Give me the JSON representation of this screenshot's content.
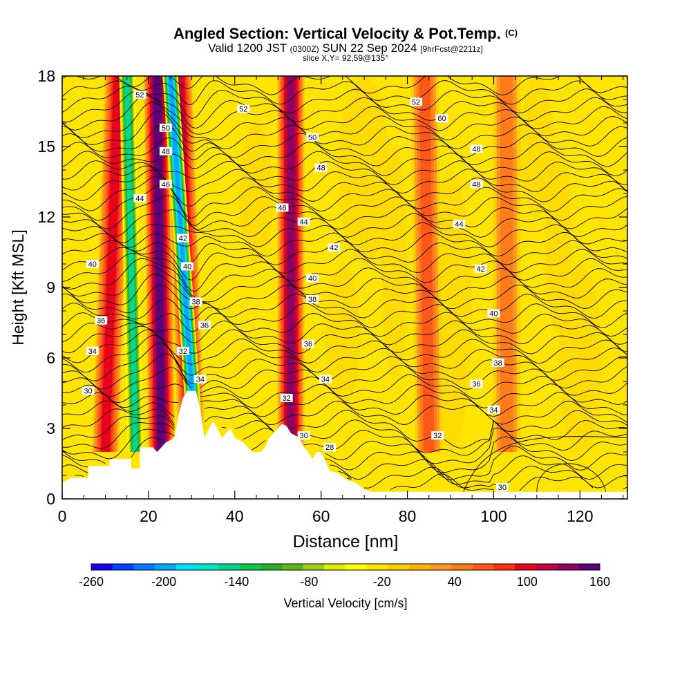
{
  "header": {
    "title": "Angled Section: Vertical Velocity & Pot.Temp.",
    "title_mark": "(C)",
    "valid_prefix": "Valid 1200 JST",
    "valid_utc": "(0300Z)",
    "valid_date": "SUN 22 Sep 2024",
    "forecast": "[9hrFcst@2211z]",
    "slice": "slice X,Y= 92,59@135°"
  },
  "chart_data": {
    "type": "heatmap",
    "xlabel": "Distance [nm]",
    "ylabel": "Height [Kft MSL]",
    "xlim": [
      0,
      131
    ],
    "ylim": [
      0,
      18
    ],
    "x_ticks": [
      0,
      20,
      40,
      60,
      80,
      100,
      120
    ],
    "y_ticks": [
      0,
      3,
      6,
      9,
      12,
      15,
      18
    ],
    "colorbar": {
      "label": "Vertical Velocity [cm/s]",
      "range": [
        -260,
        160
      ],
      "step": 20,
      "tick_labels": [
        -260,
        -200,
        -140,
        -80,
        -20,
        40,
        100,
        160
      ],
      "colors": [
        "#1400f0",
        "#0040ff",
        "#0078ff",
        "#00a8ff",
        "#00e0ff",
        "#00e8c8",
        "#00d890",
        "#10c850",
        "#28b028",
        "#60b818",
        "#a0d010",
        "#e0f000",
        "#ffff00",
        "#ffe400",
        "#ffd000",
        "#ffb400",
        "#ff9820",
        "#ff7c18",
        "#ff5818",
        "#ff3010",
        "#e8001c",
        "#c00040",
        "#900060",
        "#600078"
      ]
    },
    "background_value_cm_s": -20,
    "updraft_bands": [
      {
        "x_top": 13,
        "x_bottom": 10,
        "peak_cm_s": 100
      },
      {
        "x_top": 22,
        "x_bottom": 23,
        "peak_cm_s": 160
      },
      {
        "x_top": 27,
        "x_bottom": 30,
        "peak_cm_s": 120
      },
      {
        "x_top": 53,
        "x_bottom": 53,
        "peak_cm_s": 140
      },
      {
        "x_top": 84,
        "x_bottom": 85,
        "peak_cm_s": 60
      },
      {
        "x_top": 103,
        "x_bottom": 103,
        "peak_cm_s": 40
      }
    ],
    "downdraft_bands": [
      {
        "x_top": 15,
        "x_bottom": 17,
        "min_cm_s": -140
      },
      {
        "x_top": 25,
        "x_bottom": 31,
        "min_cm_s": -200
      }
    ],
    "terrain_kft": [
      [
        0,
        0.7
      ],
      [
        2,
        0.9
      ],
      [
        6,
        0.9
      ],
      [
        6,
        1.4
      ],
      [
        11,
        1.4
      ],
      [
        11,
        1.7
      ],
      [
        16,
        1.7
      ],
      [
        16,
        1.3
      ],
      [
        18,
        1.3
      ],
      [
        18,
        2.2
      ],
      [
        21,
        2.2
      ],
      [
        22,
        2.0
      ],
      [
        24,
        2.4
      ],
      [
        26,
        2.6
      ],
      [
        27,
        3.6
      ],
      [
        28,
        4.3
      ],
      [
        29,
        4.6
      ],
      [
        31,
        4.6
      ],
      [
        32,
        3.8
      ],
      [
        33,
        2.6
      ],
      [
        34,
        3.0
      ],
      [
        35,
        3.3
      ],
      [
        36,
        3.0
      ],
      [
        37,
        2.6
      ],
      [
        38,
        2.8
      ],
      [
        39,
        3.0
      ],
      [
        40,
        2.6
      ],
      [
        42,
        2.4
      ],
      [
        43,
        2.2
      ],
      [
        44,
        2.0
      ],
      [
        46,
        2.0
      ],
      [
        47,
        2.2
      ],
      [
        48,
        2.6
      ],
      [
        49,
        2.8
      ],
      [
        50,
        3.0
      ],
      [
        51,
        3.2
      ],
      [
        52,
        3.1
      ],
      [
        53,
        2.8
      ],
      [
        55,
        2.6
      ],
      [
        56,
        2.2
      ],
      [
        57,
        2.0
      ],
      [
        58,
        1.7
      ],
      [
        59,
        2.0
      ],
      [
        60,
        2.0
      ],
      [
        61,
        1.6
      ],
      [
        62,
        1.2
      ],
      [
        64,
        1.1
      ],
      [
        66,
        0.8
      ],
      [
        68,
        0.7
      ],
      [
        70,
        0.4
      ],
      [
        72,
        0.3
      ],
      [
        131,
        0.3
      ]
    ],
    "theta_contour_labels": [
      {
        "x": 18,
        "y": 17.2,
        "text": "52"
      },
      {
        "x": 42,
        "y": 16.6,
        "text": "52"
      },
      {
        "x": 82,
        "y": 16.9,
        "text": "52"
      },
      {
        "x": 88,
        "y": 16.2,
        "text": "60"
      },
      {
        "x": 24,
        "y": 15.8,
        "text": "50"
      },
      {
        "x": 58,
        "y": 15.4,
        "text": "50"
      },
      {
        "x": 24,
        "y": 14.8,
        "text": "48"
      },
      {
        "x": 96,
        "y": 14.9,
        "text": "48"
      },
      {
        "x": 60,
        "y": 14.1,
        "text": "48"
      },
      {
        "x": 24,
        "y": 13.4,
        "text": "46"
      },
      {
        "x": 96,
        "y": 13.4,
        "text": "48"
      },
      {
        "x": 18,
        "y": 12.8,
        "text": "44"
      },
      {
        "x": 51,
        "y": 12.4,
        "text": "46"
      },
      {
        "x": 56,
        "y": 11.8,
        "text": "44"
      },
      {
        "x": 92,
        "y": 11.7,
        "text": "44"
      },
      {
        "x": 28,
        "y": 11.1,
        "text": "42"
      },
      {
        "x": 63,
        "y": 10.7,
        "text": "42"
      },
      {
        "x": 7,
        "y": 10.0,
        "text": "40"
      },
      {
        "x": 29,
        "y": 9.9,
        "text": "40"
      },
      {
        "x": 97,
        "y": 9.8,
        "text": "42"
      },
      {
        "x": 58,
        "y": 9.4,
        "text": "40"
      },
      {
        "x": 58,
        "y": 8.5,
        "text": "38"
      },
      {
        "x": 31,
        "y": 8.4,
        "text": "38"
      },
      {
        "x": 100,
        "y": 7.9,
        "text": "40"
      },
      {
        "x": 9,
        "y": 7.6,
        "text": "36"
      },
      {
        "x": 33,
        "y": 7.4,
        "text": "36"
      },
      {
        "x": 57,
        "y": 6.6,
        "text": "36"
      },
      {
        "x": 7,
        "y": 6.3,
        "text": "34"
      },
      {
        "x": 28,
        "y": 6.3,
        "text": "32"
      },
      {
        "x": 101,
        "y": 5.8,
        "text": "38"
      },
      {
        "x": 61,
        "y": 5.1,
        "text": "34"
      },
      {
        "x": 32,
        "y": 5.1,
        "text": "34"
      },
      {
        "x": 96,
        "y": 4.9,
        "text": "36"
      },
      {
        "x": 6,
        "y": 4.6,
        "text": "30"
      },
      {
        "x": 52,
        "y": 4.3,
        "text": "32"
      },
      {
        "x": 100,
        "y": 3.8,
        "text": "34"
      },
      {
        "x": 56,
        "y": 2.7,
        "text": "30"
      },
      {
        "x": 87,
        "y": 2.7,
        "text": "32"
      },
      {
        "x": 62,
        "y": 2.2,
        "text": "28"
      },
      {
        "x": 102,
        "y": 0.5,
        "text": "30"
      }
    ]
  }
}
